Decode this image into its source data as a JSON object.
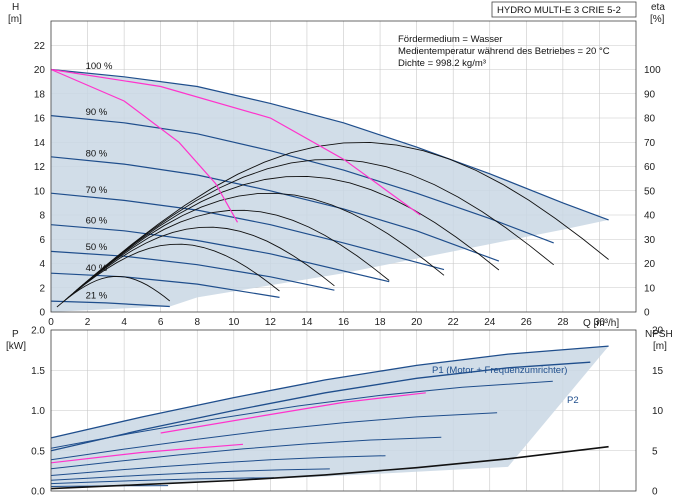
{
  "chart_data": [
    {
      "type": "line",
      "title": "HYDRO MULTI-E 3 CRIE 5-2",
      "xlabel": "Q [m³/h]",
      "ylabel": "H",
      "ylabel_unit": "[m]",
      "y2label": "eta",
      "y2label_unit": "[%]",
      "xlim": [
        0,
        32
      ],
      "ylim": [
        0,
        24
      ],
      "y2lim": [
        0,
        120
      ],
      "x_ticks": [
        0,
        2,
        4,
        6,
        8,
        10,
        12,
        14,
        16,
        18,
        20,
        22,
        24,
        26,
        28,
        30
      ],
      "y_ticks": [
        0,
        2,
        4,
        6,
        8,
        10,
        12,
        14,
        16,
        18,
        20,
        22
      ],
      "y2_ticks": [
        0,
        10,
        20,
        30,
        40,
        50,
        60,
        70,
        80,
        90,
        100
      ],
      "grid": true,
      "info_lines": [
        "Fördermedium = Wasser",
        "Medientemperatur während des Betriebes = 20 °C",
        "Dichte = 998.2 kg/m³"
      ],
      "speed_labels": [
        "100 %",
        "90 %",
        "80 %",
        "70 %",
        "60 %",
        "50 %",
        "40 %",
        "21 %"
      ],
      "series": [
        {
          "name": "100 %",
          "speed": 1.0,
          "x": [
            0,
            4,
            8,
            12,
            16,
            20,
            24,
            28,
            30.5
          ],
          "values": [
            20.0,
            19.4,
            18.6,
            17.2,
            15.6,
            13.6,
            11.4,
            9.0,
            7.6
          ]
        },
        {
          "name": "90 %",
          "speed": 0.9,
          "x": [
            0,
            4,
            8,
            12,
            16,
            20,
            24,
            27.5
          ],
          "values": [
            16.2,
            15.6,
            14.7,
            13.3,
            11.7,
            9.8,
            7.7,
            5.7
          ]
        },
        {
          "name": "80 %",
          "speed": 0.8,
          "x": [
            0,
            4,
            8,
            12,
            16,
            20,
            24.5
          ],
          "values": [
            12.8,
            12.2,
            11.3,
            10.0,
            8.5,
            6.7,
            4.2
          ]
        },
        {
          "name": "70 %",
          "speed": 0.7,
          "x": [
            0,
            4,
            8,
            12,
            16,
            21.5
          ],
          "values": [
            9.8,
            9.2,
            8.4,
            7.2,
            5.7,
            3.5
          ]
        },
        {
          "name": "60 %",
          "speed": 0.6,
          "x": [
            0,
            4,
            8,
            12,
            18.5
          ],
          "values": [
            7.2,
            6.7,
            5.9,
            4.8,
            2.5
          ]
        },
        {
          "name": "50 %",
          "speed": 0.5,
          "x": [
            0,
            4,
            8,
            12,
            15.5
          ],
          "values": [
            5.0,
            4.6,
            3.9,
            2.9,
            1.8
          ]
        },
        {
          "name": "40 %",
          "speed": 0.4,
          "x": [
            0,
            4,
            8,
            12.5
          ],
          "values": [
            3.2,
            2.9,
            2.3,
            1.2
          ]
        },
        {
          "name": "21 %",
          "speed": 0.21,
          "x": [
            0,
            3,
            6.5
          ],
          "values": [
            0.9,
            0.75,
            0.45
          ]
        }
      ],
      "envelope": {
        "x": [
          0,
          4,
          8,
          12,
          16,
          20,
          24,
          28,
          30.5,
          28,
          24,
          20,
          16,
          12,
          8,
          6.5,
          4,
          0
        ],
        "values": [
          20.0,
          19.4,
          18.6,
          17.2,
          15.6,
          13.6,
          11.4,
          9.0,
          7.6,
          6.8,
          5.6,
          4.4,
          3.2,
          2.2,
          1.2,
          0.45,
          0.3,
          0
        ]
      },
      "colors": {
        "curve": "#1f4e8c",
        "envelope": "#c9d7e4",
        "highlight": "#ff33cc",
        "eta": "#111111",
        "grid": "#c8c8c8"
      }
    },
    {
      "type": "line",
      "xlabel": "Q [m³/h]",
      "ylabel": "P",
      "ylabel_unit": "[kW]",
      "y2label": "NPSH",
      "y2label_unit": "[m]",
      "xlim": [
        0,
        32
      ],
      "ylim": [
        0,
        2.0
      ],
      "y2lim": [
        0,
        20
      ],
      "y_ticks": [
        "0.0",
        "0.5",
        "1.0",
        "1.5",
        "2.0"
      ],
      "y2_ticks": [
        0,
        5,
        10,
        15,
        20
      ],
      "grid": true,
      "series_labels": [
        "P1 (Motor + Frequenzumrichter)",
        "P2"
      ],
      "series": [
        {
          "name": "P1 (Motor + Frequenzumrichter)",
          "x": [
            0,
            5,
            10,
            15,
            20,
            25,
            30.5
          ],
          "values": [
            0.66,
            0.92,
            1.16,
            1.38,
            1.56,
            1.7,
            1.8
          ]
        },
        {
          "name": "P2",
          "x": [
            0,
            5,
            10,
            15,
            20,
            25,
            29.5
          ],
          "values": [
            0.5,
            0.76,
            1.0,
            1.22,
            1.4,
            1.53,
            1.6
          ]
        }
      ],
      "npsh": {
        "x": [
          0,
          5,
          10,
          15,
          20,
          25,
          30.5
        ],
        "values": [
          0.3,
          0.8,
          1.3,
          2.0,
          2.9,
          4.0,
          5.5
        ]
      },
      "colors": {
        "curve": "#1f4e8c",
        "envelope": "#c9d7e4",
        "highlight": "#ff33cc",
        "npsh": "#111111",
        "grid": "#c8c8c8"
      }
    }
  ]
}
